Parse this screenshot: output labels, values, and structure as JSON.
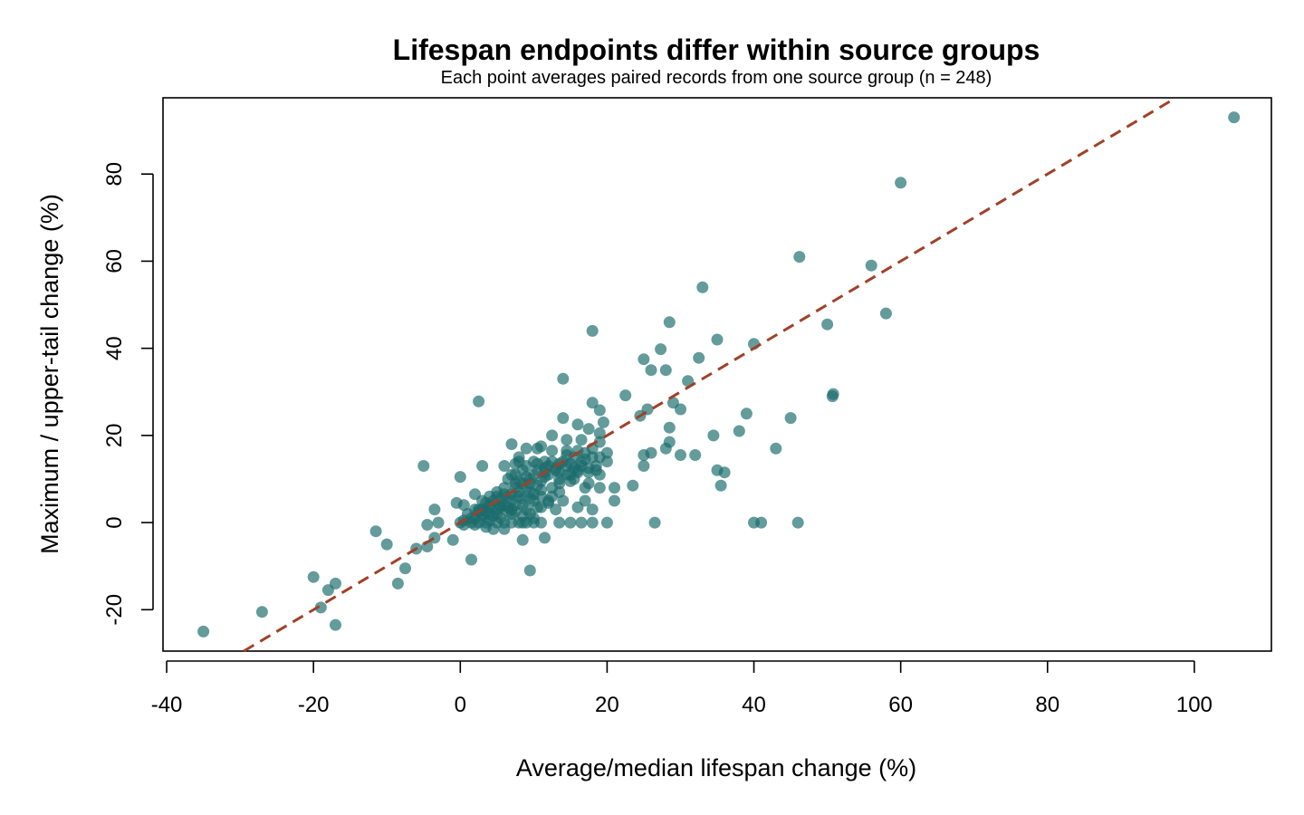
{
  "chart_data": {
    "type": "scatter",
    "title": "Lifespan endpoints differ within source groups",
    "subtitle": "Each point averages paired records from one source group (n = 248)",
    "xlabel": "Average/median lifespan change (%)",
    "ylabel": "Maximum / upper-tail change (%)",
    "xlim": [
      -40.5,
      110.5
    ],
    "ylim": [
      -29.5,
      97.5
    ],
    "xticks": [
      -40,
      -20,
      0,
      20,
      40,
      60,
      80,
      100
    ],
    "yticks": [
      -20,
      0,
      20,
      40,
      60,
      80
    ],
    "grid": false,
    "legend": "none",
    "point_color": "#1b6b6b",
    "line_color": "#a0412a",
    "reference_line": {
      "style": "dashed",
      "intercept": 0,
      "slope": 1
    },
    "points": [
      [
        105.4,
        93
      ],
      [
        60,
        78
      ],
      [
        46.2,
        61
      ],
      [
        56,
        59
      ],
      [
        33,
        54
      ],
      [
        58,
        48
      ],
      [
        28.5,
        46
      ],
      [
        50,
        45.5
      ],
      [
        18,
        44
      ],
      [
        35,
        42
      ],
      [
        40,
        41
      ],
      [
        27.3,
        39.8
      ],
      [
        25,
        37.5
      ],
      [
        32.5,
        37.8
      ],
      [
        26,
        35
      ],
      [
        28,
        35
      ],
      [
        14,
        33
      ],
      [
        31,
        32.5
      ],
      [
        50.8,
        29.5
      ],
      [
        50.7,
        29
      ],
      [
        22.5,
        29.2
      ],
      [
        2.5,
        27.8
      ],
      [
        18,
        27.5
      ],
      [
        29,
        27.5
      ],
      [
        25.5,
        26
      ],
      [
        30,
        26
      ],
      [
        19,
        25.8
      ],
      [
        24.5,
        24.5
      ],
      [
        39,
        25
      ],
      [
        45,
        24
      ],
      [
        14,
        24
      ],
      [
        16,
        22.5
      ],
      [
        19.5,
        23
      ],
      [
        28.5,
        21.8
      ],
      [
        38,
        21
      ],
      [
        17.5,
        21.5
      ],
      [
        19,
        20.5
      ],
      [
        12.5,
        20
      ],
      [
        34.5,
        20
      ],
      [
        14.5,
        19
      ],
      [
        16.5,
        19
      ],
      [
        19,
        18.5
      ],
      [
        28.5,
        18.5
      ],
      [
        11,
        17.5
      ],
      [
        9,
        17
      ],
      [
        10.5,
        17
      ],
      [
        7,
        18
      ],
      [
        18,
        17
      ],
      [
        28,
        17
      ],
      [
        43,
        17
      ],
      [
        14.5,
        16.5
      ],
      [
        12.5,
        16.5
      ],
      [
        17,
        16
      ],
      [
        20,
        16
      ],
      [
        25,
        15.5
      ],
      [
        26,
        16
      ],
      [
        30,
        15.5
      ],
      [
        32,
        15.5
      ],
      [
        15.5,
        15
      ],
      [
        8,
        15
      ],
      [
        19,
        15
      ],
      [
        20,
        14
      ],
      [
        -5,
        13
      ],
      [
        3,
        13
      ],
      [
        6,
        13
      ],
      [
        7.5,
        13.5
      ],
      [
        10.5,
        13.5
      ],
      [
        11.5,
        14
      ],
      [
        13.5,
        13.5
      ],
      [
        14.5,
        13
      ],
      [
        16.5,
        13
      ],
      [
        18.5,
        12
      ],
      [
        25,
        13
      ],
      [
        8.5,
        12
      ],
      [
        11.5,
        12.5
      ],
      [
        13.5,
        11.5
      ],
      [
        16,
        12
      ],
      [
        17.5,
        11.5
      ],
      [
        35,
        12
      ],
      [
        36,
        11.5
      ],
      [
        0,
        10.5
      ],
      [
        7,
        11
      ],
      [
        11.5,
        10.5
      ],
      [
        15,
        11
      ],
      [
        19,
        11
      ],
      [
        13.5,
        10
      ],
      [
        9.5,
        10
      ],
      [
        15,
        9.5
      ],
      [
        17.5,
        9
      ],
      [
        10.5,
        8.5
      ],
      [
        12.5,
        8
      ],
      [
        2,
        6.5
      ],
      [
        4,
        6
      ],
      [
        5,
        7
      ],
      [
        6,
        6.5
      ],
      [
        7.5,
        8
      ],
      [
        8,
        7
      ],
      [
        9,
        8
      ],
      [
        11,
        7.5
      ],
      [
        13.5,
        7
      ],
      [
        17,
        8
      ],
      [
        21,
        8
      ],
      [
        23.5,
        8.5
      ],
      [
        19,
        8
      ],
      [
        35.5,
        8.5
      ],
      [
        3,
        5
      ],
      [
        5.5,
        5.5
      ],
      [
        7,
        5
      ],
      [
        8.5,
        5.5
      ],
      [
        10,
        5
      ],
      [
        12,
        5
      ],
      [
        14,
        5
      ],
      [
        17,
        5
      ],
      [
        21,
        5
      ],
      [
        -0.5,
        4.5
      ],
      [
        0.5,
        4
      ],
      [
        2.5,
        3
      ],
      [
        4,
        3.5
      ],
      [
        5,
        3
      ],
      [
        6.5,
        3.5
      ],
      [
        7.5,
        4
      ],
      [
        9,
        3
      ],
      [
        11,
        3.5
      ],
      [
        13,
        3
      ],
      [
        16,
        3.5
      ],
      [
        18,
        3
      ],
      [
        -3.5,
        3
      ],
      [
        1,
        2
      ],
      [
        2,
        1
      ],
      [
        3,
        2
      ],
      [
        4.5,
        1.5
      ],
      [
        5.5,
        1
      ],
      [
        7,
        2
      ],
      [
        8.5,
        1.5
      ],
      [
        10,
        1
      ],
      [
        0,
        0
      ],
      [
        -3,
        0
      ],
      [
        1.5,
        0
      ],
      [
        2.5,
        0
      ],
      [
        3.5,
        0
      ],
      [
        5,
        0
      ],
      [
        6,
        0
      ],
      [
        7,
        0
      ],
      [
        8,
        0
      ],
      [
        8.5,
        0
      ],
      [
        9,
        0
      ],
      [
        10,
        0
      ],
      [
        11,
        0
      ],
      [
        13.5,
        0
      ],
      [
        15,
        0
      ],
      [
        16.5,
        0
      ],
      [
        18,
        0
      ],
      [
        20,
        0
      ],
      [
        26.5,
        0
      ],
      [
        40,
        0
      ],
      [
        41,
        0
      ],
      [
        46,
        0
      ],
      [
        -4.5,
        -0.5
      ],
      [
        0.5,
        -0.5
      ],
      [
        2,
        -0.5
      ],
      [
        3.5,
        -1
      ],
      [
        4.5,
        -1.5
      ],
      [
        6,
        -1.5
      ],
      [
        -11.5,
        -2
      ],
      [
        -1,
        -4
      ],
      [
        -3.5,
        -3.5
      ],
      [
        8.5,
        -4
      ],
      [
        11.5,
        -3.5
      ],
      [
        -10,
        -5
      ],
      [
        -6,
        -6
      ],
      [
        -4.5,
        -5.5
      ],
      [
        1.5,
        -8.5
      ],
      [
        -7.5,
        -10.5
      ],
      [
        9.5,
        -11
      ],
      [
        -20,
        -12.5
      ],
      [
        -8.5,
        -14
      ],
      [
        -17,
        -14
      ],
      [
        -18,
        -15.5
      ],
      [
        -19,
        -19.5
      ],
      [
        -27,
        -20.5
      ],
      [
        -17,
        -23.5
      ],
      [
        -35,
        -25
      ],
      [
        4,
        4
      ],
      [
        6,
        4
      ],
      [
        5,
        2
      ],
      [
        3,
        1.5
      ],
      [
        4,
        0.5
      ],
      [
        6.5,
        2.5
      ],
      [
        7.5,
        2.5
      ],
      [
        9.5,
        2
      ],
      [
        10.5,
        3.5
      ],
      [
        12,
        4.5
      ],
      [
        12.5,
        6
      ],
      [
        10,
        6.5
      ],
      [
        8,
        6
      ],
      [
        6.5,
        6
      ],
      [
        9.5,
        9
      ],
      [
        11,
        9.5
      ],
      [
        13,
        12
      ],
      [
        15.5,
        12.5
      ],
      [
        14.5,
        11
      ],
      [
        16,
        11.5
      ],
      [
        12,
        13
      ],
      [
        10,
        14
      ],
      [
        8,
        14
      ],
      [
        9,
        13
      ],
      [
        7.5,
        11
      ],
      [
        6.5,
        10
      ],
      [
        4.5,
        5
      ],
      [
        3.5,
        4.5
      ],
      [
        2.5,
        2.5
      ],
      [
        1.5,
        1
      ],
      [
        0.5,
        0.5
      ],
      [
        3,
        3
      ],
      [
        5.5,
        4
      ],
      [
        7,
        6.5
      ],
      [
        8.5,
        9
      ],
      [
        10,
        11
      ],
      [
        11.5,
        11.5
      ],
      [
        13,
        12.5
      ],
      [
        15,
        13.5
      ],
      [
        16.5,
        14
      ],
      [
        17,
        14.5
      ],
      [
        18,
        15
      ],
      [
        14,
        14
      ],
      [
        12,
        11
      ],
      [
        9.5,
        7
      ],
      [
        8,
        9.5
      ],
      [
        6,
        8
      ],
      [
        5,
        6
      ],
      [
        3.5,
        2.5
      ],
      [
        2,
        3
      ],
      [
        4,
        2
      ],
      [
        5.5,
        3.5
      ],
      [
        7,
        3
      ],
      [
        8.5,
        4
      ],
      [
        9.5,
        5.5
      ],
      [
        11,
        6
      ],
      [
        13.5,
        9
      ],
      [
        15.5,
        10
      ],
      [
        17.5,
        12.5
      ],
      [
        18.5,
        13
      ],
      [
        16,
        16.5
      ],
      [
        14.5,
        15.5
      ],
      [
        12.5,
        14
      ],
      [
        10.5,
        12
      ],
      [
        9,
        10.5
      ],
      [
        7.5,
        9
      ]
    ]
  }
}
